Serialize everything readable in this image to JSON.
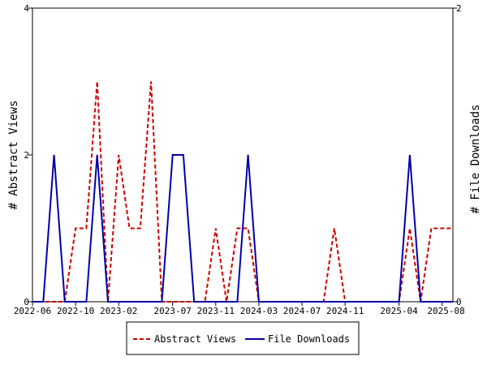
{
  "chart_data": {
    "type": "line",
    "ylabel_left": "# Abstract Views",
    "ylabel_right": "# File Downloads",
    "ylim_left": [
      0,
      4
    ],
    "ylim_right": [
      0,
      2
    ],
    "yticks_left": [
      "0",
      "2",
      "4"
    ],
    "yticks_right": [
      "0",
      "2"
    ],
    "xlim": [
      "2022-06",
      "2025-09"
    ],
    "xticks": [
      "2022-06",
      "2022-10",
      "2023-02",
      "2023-07",
      "2023-11",
      "2024-03",
      "2024-07",
      "2024-11",
      "2025-04",
      "2025-08"
    ],
    "grid": false,
    "legend_position": "bottom",
    "x": [
      "2022-06",
      "2022-07",
      "2022-08",
      "2022-09",
      "2022-10",
      "2022-11",
      "2022-12",
      "2023-01",
      "2023-02",
      "2023-03",
      "2023-04",
      "2023-05",
      "2023-06",
      "2023-07",
      "2023-08",
      "2023-09",
      "2023-10",
      "2023-11",
      "2023-12",
      "2024-01",
      "2024-02",
      "2024-03",
      "2024-04",
      "2024-05",
      "2024-06",
      "2024-07",
      "2024-08",
      "2024-09",
      "2024-10",
      "2024-11",
      "2024-12",
      "2025-01",
      "2025-02",
      "2025-03",
      "2025-04",
      "2025-05",
      "2025-06",
      "2025-07",
      "2025-08",
      "2025-09"
    ],
    "series": [
      {
        "name": "Abstract Views",
        "axis": "left",
        "color": "#cc0000",
        "dash": true,
        "values": [
          0,
          0,
          0,
          0,
          1,
          1,
          3,
          0,
          2,
          1,
          1,
          3,
          0,
          0,
          0,
          0,
          0,
          1,
          0,
          1,
          1,
          0,
          0,
          0,
          0,
          0,
          0,
          0,
          1,
          0,
          0,
          0,
          0,
          0,
          0,
          1,
          0,
          1,
          1,
          1
        ]
      },
      {
        "name": "File Downloads",
        "axis": "right",
        "color": "#0000aa",
        "dash": false,
        "values": [
          0,
          0,
          1,
          0,
          0,
          0,
          1,
          0,
          0,
          0,
          0,
          0,
          0,
          1,
          1,
          0,
          0,
          0,
          0,
          0,
          1,
          0,
          0,
          0,
          0,
          0,
          0,
          0,
          0,
          0,
          0,
          0,
          0,
          0,
          0,
          1,
          0,
          0,
          0,
          0
        ]
      }
    ]
  }
}
